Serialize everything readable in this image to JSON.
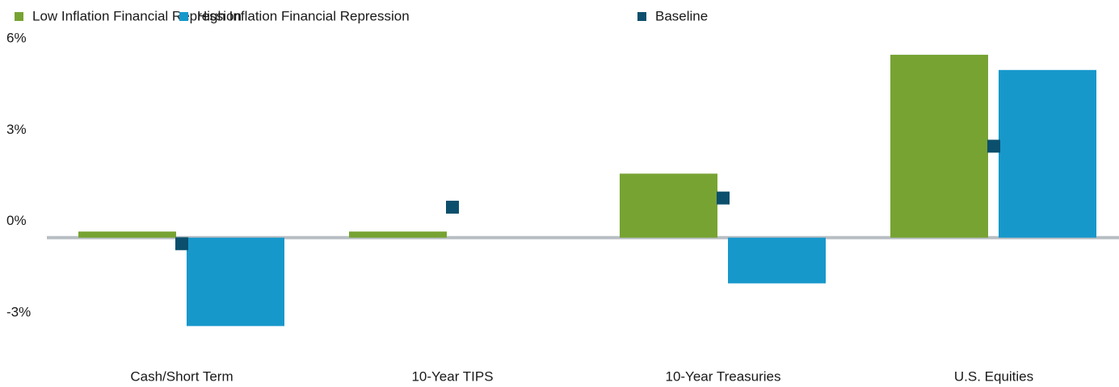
{
  "chart_data": {
    "type": "bar",
    "categories": [
      "Cash/Short Term",
      "10-Year TIPS",
      "10-Year Treasuries",
      "U.S. Equities"
    ],
    "series": [
      {
        "name": "Low Inflation Financial Repression",
        "color": "#77a333",
        "values": [
          0.2,
          0.2,
          2.1,
          6.0
        ]
      },
      {
        "name": "High Inflation Financial Repression",
        "color": "#1798cb",
        "values": [
          -2.9,
          0,
          -1.5,
          5.5
        ]
      },
      {
        "name": "Baseline",
        "color": "#0b4f6c",
        "marker": "square",
        "values": [
          -0.2,
          1.0,
          1.3,
          3.0
        ]
      }
    ],
    "ylim": [
      -4,
      6.5
    ],
    "yticks": [
      {
        "value": -3,
        "label": "-3%"
      },
      {
        "value": 0,
        "label": "0%"
      },
      {
        "value": 3,
        "label": "3%"
      },
      {
        "value": 6,
        "label": "6%"
      }
    ],
    "zero_line": true,
    "legend": "top-left"
  }
}
